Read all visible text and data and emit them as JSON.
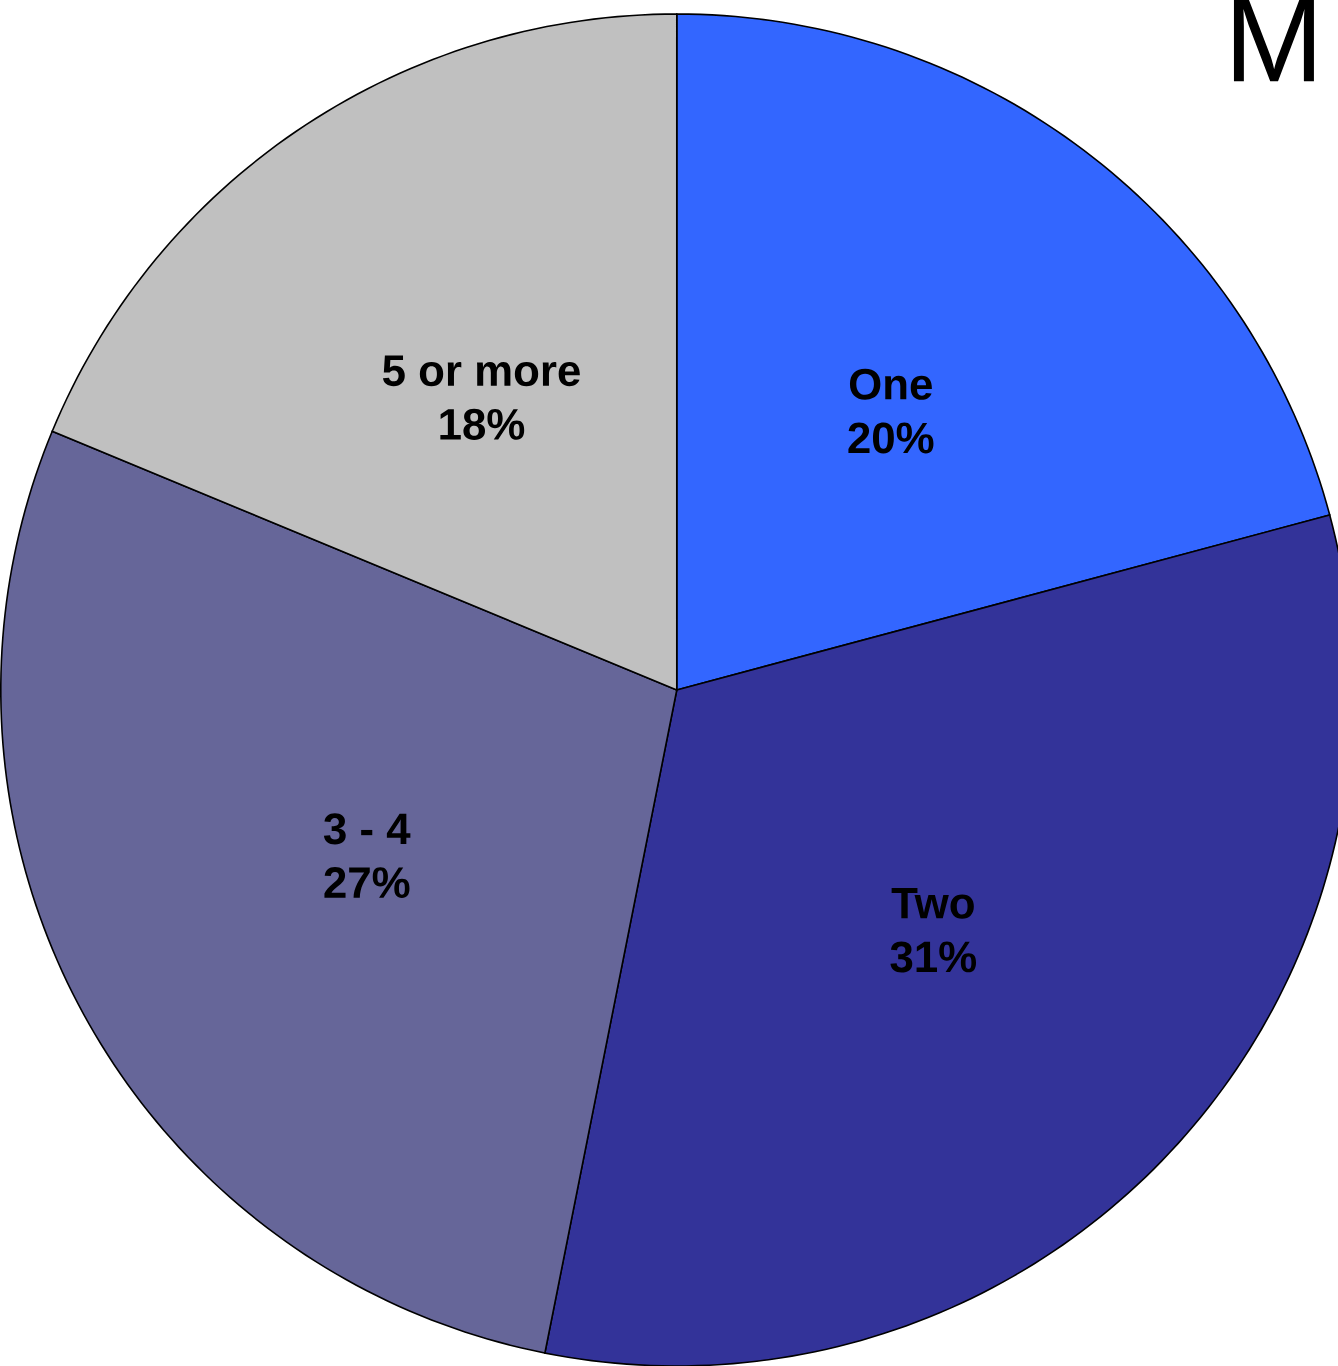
{
  "chart_data": {
    "type": "pie",
    "title": "M",
    "categories": [
      "One",
      "Two",
      "3 - 4",
      "5 or more"
    ],
    "values": [
      20,
      31,
      27,
      18
    ],
    "value_labels": [
      "20%",
      "31%",
      "27%",
      "18%"
    ],
    "colors": [
      "#3366ff",
      "#333399",
      "#666699",
      "#c0c0c0"
    ]
  }
}
